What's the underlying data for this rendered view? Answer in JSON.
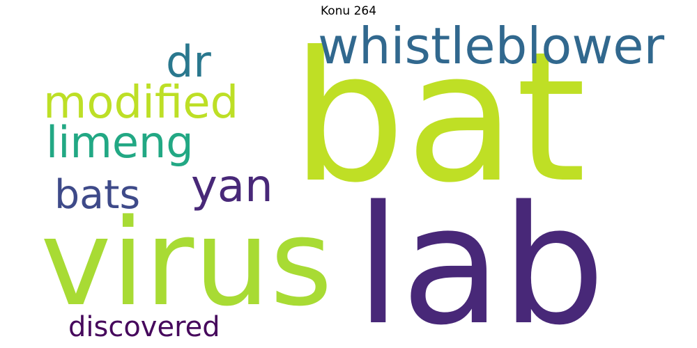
{
  "title": "Konu 264",
  "words": [
    {
      "text": "bat",
      "color": "#bfdf25"
    },
    {
      "text": "lab",
      "color": "#482878"
    },
    {
      "text": "virus",
      "color": "#a8db34"
    },
    {
      "text": "whistleblower",
      "color": "#31688e"
    },
    {
      "text": "dr",
      "color": "#2a788e"
    },
    {
      "text": "modified",
      "color": "#bddf26"
    },
    {
      "text": "limeng",
      "color": "#22a884"
    },
    {
      "text": "yan",
      "color": "#482878"
    },
    {
      "text": "bats",
      "color": "#3e4a89"
    },
    {
      "text": "discovered",
      "color": "#46085c"
    }
  ]
}
